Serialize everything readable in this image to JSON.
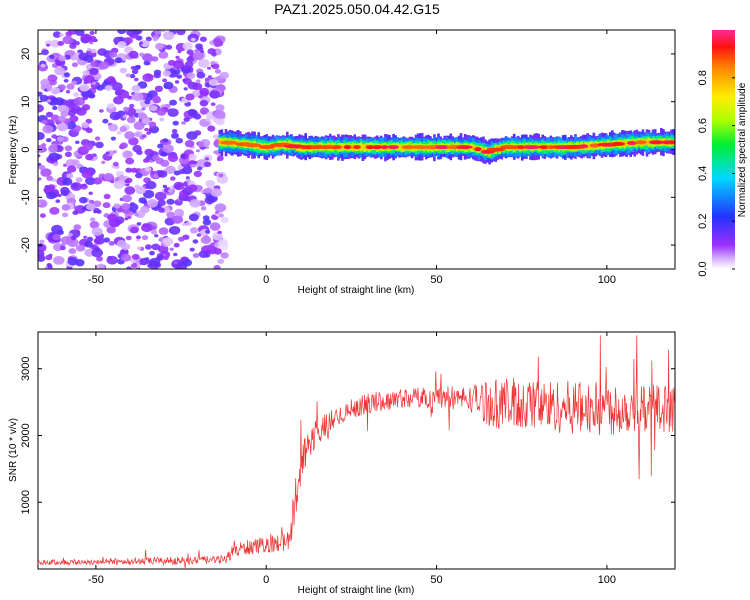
{
  "title": "PAZ1.2025.050.04.42.G15",
  "chart_data": [
    {
      "type": "heatmap",
      "xlabel": "Height of straight line (km)",
      "ylabel": "Frequency (Hz)",
      "xlim": [
        -67,
        120
      ],
      "ylim": [
        -25,
        25
      ],
      "x_ticks": [
        -50,
        0,
        50,
        100
      ],
      "y_ticks": [
        -20,
        -10,
        0,
        10,
        20
      ],
      "colorbar": {
        "label": "Normalized spectral amplitude",
        "range": [
          0,
          1
        ],
        "ticks": [
          "0.0",
          "0.2",
          "0.4",
          "0.6",
          "0.8"
        ],
        "colormap": "rainbow (purple-blue-cyan-green-yellow-red-magenta)"
      },
      "signal_track": {
        "x": [
          -17,
          -12,
          -5,
          0,
          5,
          10,
          20,
          30,
          40,
          50,
          60,
          65,
          70,
          80,
          90,
          100,
          110,
          120
        ],
        "center_frequency_hz": [
          1.5,
          1.5,
          1.0,
          0.5,
          1.0,
          0.5,
          0.5,
          0.5,
          0.5,
          0.5,
          0.5,
          -0.5,
          0.5,
          0.5,
          0.5,
          1.0,
          1.5,
          1.5
        ]
      },
      "noise_region_x": [
        -67,
        -12
      ]
    },
    {
      "type": "line",
      "xlabel": "Height of straight line (km)",
      "ylabel": "SNR (10 * v/v)",
      "xlim": [
        -67,
        120
      ],
      "ylim": [
        0,
        3550
      ],
      "x_ticks": [
        -50,
        0,
        50,
        100
      ],
      "y_ticks": [
        1000,
        2000,
        3000
      ],
      "series": [
        {
          "color": "#ee3333",
          "x": [
            -67,
            -60,
            -50,
            -40,
            -30,
            -20,
            -12,
            -10,
            -5,
            0,
            5,
            7,
            8,
            10,
            12,
            15,
            20,
            25,
            30,
            40,
            50,
            60,
            65,
            70,
            80,
            90,
            100,
            110,
            120
          ],
          "mean": [
            100,
            100,
            105,
            115,
            120,
            130,
            140,
            260,
            330,
            360,
            400,
            420,
            900,
            1500,
            1850,
            2050,
            2250,
            2400,
            2480,
            2560,
            2580,
            2550,
            2500,
            2470,
            2450,
            2420,
            2400,
            2420,
            2400
          ],
          "noise_amplitude": [
            40,
            40,
            45,
            50,
            60,
            60,
            60,
            100,
            120,
            120,
            140,
            150,
            300,
            300,
            250,
            200,
            160,
            150,
            150,
            150,
            160,
            200,
            350,
            400,
            400,
            400,
            400,
            380,
            350
          ],
          "max": 3500
        }
      ]
    }
  ]
}
